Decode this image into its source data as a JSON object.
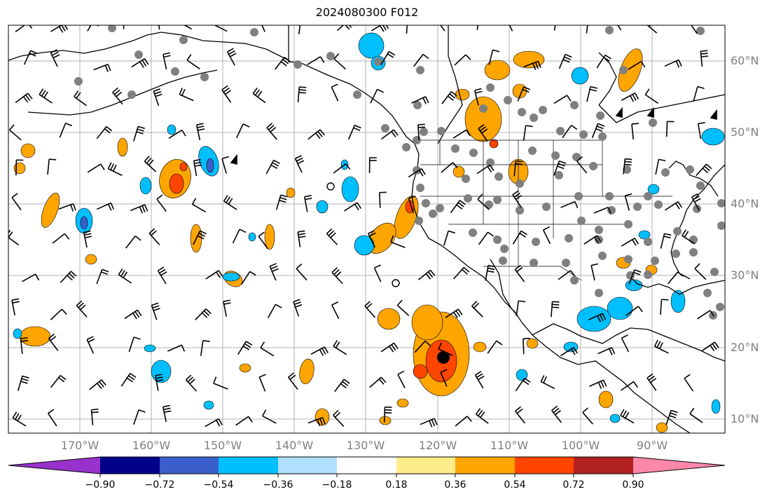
{
  "title": "2024080300 F012",
  "latitude_labels": [
    "60°N",
    "50°N",
    "40°N",
    "30°N",
    "20°N",
    "10°N"
  ],
  "longitude_labels": [
    "170°W",
    "160°W",
    "150°W",
    "140°W",
    "130°W",
    "120°W",
    "110°W",
    "100°W",
    "90°W"
  ],
  "colorbar": {
    "tick_labels": [
      "−0.90",
      "−0.72",
      "−0.54",
      "−0.36",
      "−0.18",
      "0.18",
      "0.36",
      "0.54",
      "0.72",
      "0.90"
    ],
    "colors": [
      "#9932cc",
      "#00008b",
      "#3a5fcd",
      "#00bfff",
      "#afe0ff",
      "#ffffff",
      "#ffec8b",
      "#ffa500",
      "#ff4500",
      "#b22222",
      "#ff88aa"
    ]
  },
  "field_colors": {
    "light_blue": "#afe0ff",
    "sky_blue": "#00bfff",
    "medium_blue": "#3a5fcd",
    "light_yellow": "#ffec8b",
    "orange": "#ffa500",
    "red_orange": "#ff4500",
    "coastline": "#000000",
    "station_marker": "#808080",
    "gridline": "#b0b0b0"
  }
}
